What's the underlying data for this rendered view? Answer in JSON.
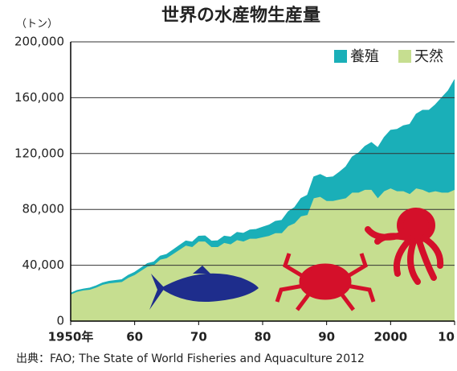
{
  "chart_data": {
    "type": "area",
    "stacked": true,
    "title": "世界の水産物生産量",
    "y_label": "（トン）",
    "source": "出典：FAO; The State of World Fisheries and Aquaculture 2012",
    "x": [
      1950,
      1951,
      1952,
      1953,
      1954,
      1955,
      1956,
      1957,
      1958,
      1959,
      1960,
      1961,
      1962,
      1963,
      1964,
      1965,
      1966,
      1967,
      1968,
      1969,
      1970,
      1971,
      1972,
      1973,
      1974,
      1975,
      1976,
      1977,
      1978,
      1979,
      1980,
      1981,
      1982,
      1983,
      1984,
      1985,
      1986,
      1987,
      1988,
      1989,
      1990,
      1991,
      1992,
      1993,
      1994,
      1995,
      1996,
      1997,
      1998,
      1999,
      2000,
      2001,
      2002,
      2003,
      2004,
      2005,
      2006,
      2007,
      2008,
      2009,
      2010
    ],
    "series": [
      {
        "name": "天然",
        "color": "#c6de90",
        "values": [
          19000,
          21000,
          22000,
          22500,
          24000,
          26000,
          27000,
          27500,
          28000,
          31000,
          33000,
          36000,
          39000,
          40000,
          44000,
          45000,
          48000,
          51000,
          54000,
          53000,
          57000,
          57000,
          53000,
          53000,
          56000,
          55000,
          58000,
          57000,
          59000,
          59000,
          60000,
          61000,
          63000,
          63000,
          68000,
          70000,
          75000,
          76000,
          88000,
          89000,
          86000,
          86000,
          87000,
          88000,
          92000,
          92000,
          94000,
          94000,
          88000,
          93000,
          95000,
          93000,
          93000,
          91000,
          95000,
          94000,
          92000,
          93000,
          92000,
          92000,
          94000
        ]
      },
      {
        "name": "養殖",
        "color": "#1aafb8",
        "values": [
          1000,
          1000,
          1000,
          1200,
          1300,
          1400,
          1500,
          1600,
          1700,
          1800,
          2000,
          2100,
          2200,
          2400,
          2600,
          2800,
          3000,
          3200,
          3400,
          3600,
          3800,
          4000,
          4300,
          4600,
          4900,
          5200,
          5500,
          5900,
          6300,
          6700,
          7300,
          7800,
          8500,
          9200,
          10400,
          11400,
          12900,
          14200,
          15300,
          16000,
          16800,
          17300,
          19700,
          22500,
          25600,
          28500,
          31200,
          33900,
          36200,
          38600,
          41700,
          44300,
          46900,
          49900,
          53300,
          57000,
          59000,
          62000,
          68000,
          73000,
          79000
        ]
      }
    ],
    "xlim": [
      1950,
      2010
    ],
    "xticks": [
      {
        "value": 1950,
        "label": "1950年"
      },
      {
        "value": 1960,
        "label": "60"
      },
      {
        "value": 1970,
        "label": "70"
      },
      {
        "value": 1980,
        "label": "80"
      },
      {
        "value": 1990,
        "label": "90"
      },
      {
        "value": 2000,
        "label": "2000"
      },
      {
        "value": 2010,
        "label": "10"
      }
    ],
    "ylim": [
      0,
      200000
    ],
    "yticks": [
      0,
      {
        "value": 40000,
        "label": "40,000"
      },
      {
        "value": 80000,
        "label": "80,000"
      },
      {
        "value": 120000,
        "label": "120,000"
      },
      {
        "value": 160000,
        "label": "160,000"
      },
      {
        "value": 200000,
        "label": "200,000"
      }
    ],
    "grid": true,
    "legend": "top-right"
  }
}
